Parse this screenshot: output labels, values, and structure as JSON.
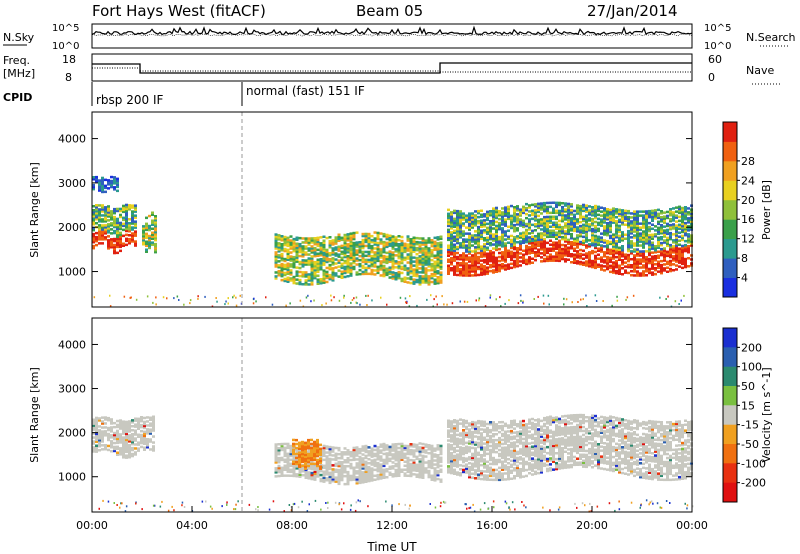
{
  "header": {
    "station": "Fort Hays West (fitACF)",
    "beam": "Beam 05",
    "date": "27/Jan/2014"
  },
  "top_panels": {
    "nsky_label": "N.Sky",
    "nsearch_label": "N.Search",
    "noise_ticks": [
      "10^5",
      "10^0"
    ],
    "freq_label": "Freq.",
    "freq_unit": "[MHz]",
    "freq_ticks": [
      "18",
      "8"
    ],
    "nave_label": "Nave",
    "nave_ticks": [
      "60",
      "0"
    ],
    "cpid_label": "CPID",
    "cpid_modes": [
      {
        "label": "rbsp 200 IF",
        "start": 0,
        "end": 6
      },
      {
        "label": "normal (fast) 151 IF",
        "start": 6,
        "end": 24
      }
    ]
  },
  "chart_data": [
    {
      "type": "heatmap",
      "quantity": "Power",
      "xlabel": "",
      "ylabel": "Slant Range [km]",
      "xlim": [
        0,
        24
      ],
      "ylim": [
        200,
        4600
      ],
      "yticks": [
        "1000",
        "2000",
        "3000",
        "4000"
      ],
      "colorbar": {
        "label": "Power [dB]",
        "ticks": [
          "4",
          "8",
          "12",
          "16",
          "20",
          "24",
          "28"
        ],
        "colors": [
          "#1a2fe0",
          "#2f5fbf",
          "#2b9a8f",
          "#3aa04a",
          "#8fc03a",
          "#e8d020",
          "#f0a020",
          "#f06010",
          "#e02010"
        ]
      },
      "echo_regions": [
        {
          "t0": 0.0,
          "t1": 1.7,
          "r0": 1500,
          "r1": 2450,
          "level": "high"
        },
        {
          "t0": 0.0,
          "t1": 1.0,
          "r0": 2800,
          "r1": 3100,
          "level": "low"
        },
        {
          "t0": 2.0,
          "t1": 2.5,
          "r0": 1500,
          "r1": 2300,
          "level": "mid"
        },
        {
          "t0": 7.3,
          "t1": 14.0,
          "r0": 800,
          "r1": 1800,
          "level": "mid"
        },
        {
          "t0": 14.2,
          "t1": 24.0,
          "r0": 1050,
          "r1": 2450,
          "level": "high"
        }
      ]
    },
    {
      "type": "heatmap",
      "quantity": "Velocity",
      "xlabel": "Time UT",
      "ylabel": "Slant Range [km]",
      "xlim": [
        0,
        24
      ],
      "ylim": [
        200,
        4600
      ],
      "xticks": [
        "00:00",
        "04:00",
        "08:00",
        "12:00",
        "16:00",
        "20:00",
        "00:00"
      ],
      "yticks": [
        "1000",
        "2000",
        "3000",
        "4000"
      ],
      "colorbar": {
        "label": "Velocity [m s^-1]",
        "ticks": [
          "200",
          "100",
          "50",
          "15",
          "-15",
          "-50",
          "-100",
          "-200"
        ],
        "colors": [
          "#1a2fd0",
          "#2a5fb0",
          "#2b8a6f",
          "#7ac040",
          "#c8c8c0",
          "#f0a020",
          "#f07010",
          "#e83010",
          "#e01010"
        ]
      },
      "echo_regions": [
        {
          "t0": 0.0,
          "t1": 2.5,
          "r0": 1500,
          "r1": 2300,
          "level": "ground"
        },
        {
          "t0": 7.3,
          "t1": 14.0,
          "r0": 900,
          "r1": 1700,
          "level": "ground"
        },
        {
          "t0": 8.0,
          "t1": 9.2,
          "r0": 1200,
          "r1": 1800,
          "level": "away"
        },
        {
          "t0": 14.2,
          "t1": 24.0,
          "r0": 1050,
          "r1": 2300,
          "level": "ground"
        }
      ]
    }
  ]
}
